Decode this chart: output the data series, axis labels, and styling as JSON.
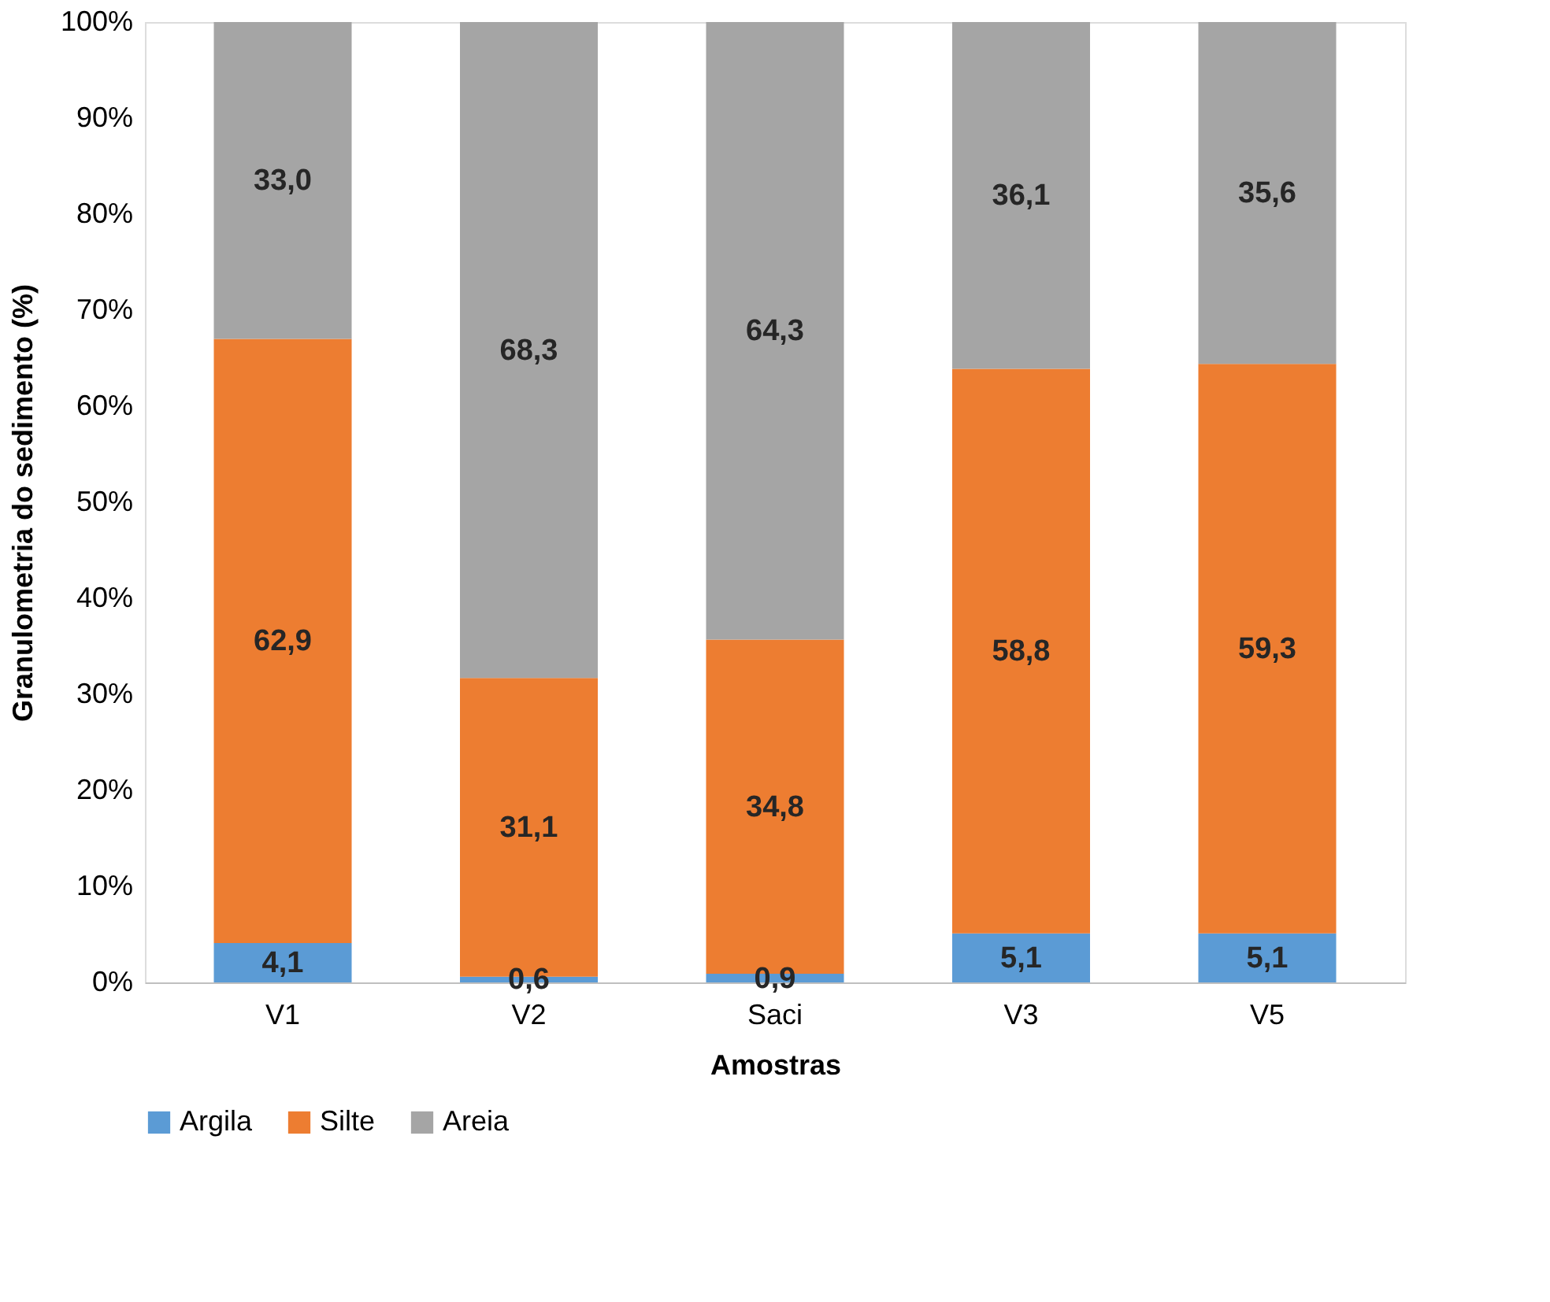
{
  "chart_data": {
    "type": "bar",
    "stacked": true,
    "xlabel": "Amostras",
    "ylabel": "Granulometria do sedimento (%)",
    "categories": [
      "V1",
      "V2",
      "Saci",
      "V3",
      "V5"
    ],
    "series": [
      {
        "name": "Argila",
        "color": "#5b9bd5",
        "values": [
          4.1,
          0.6,
          0.9,
          5.1,
          5.1
        ],
        "value_labels": [
          "4,1",
          "0,6",
          "0,9",
          "5,1",
          "5,1"
        ]
      },
      {
        "name": "Silte",
        "color": "#ed7d31",
        "values": [
          62.9,
          31.1,
          34.8,
          58.8,
          59.3
        ],
        "value_labels": [
          "62,9",
          "31,1",
          "34,8",
          "58,8",
          "59,3"
        ]
      },
      {
        "name": "Areia",
        "color": "#a5a5a5",
        "values": [
          33.0,
          68.3,
          64.3,
          36.1,
          35.6
        ],
        "value_labels": [
          "33,0",
          "68,3",
          "64,3",
          "36,1",
          "35,6"
        ]
      }
    ],
    "ylim": [
      0,
      100
    ],
    "yticks": [
      {
        "value": 0,
        "label": "0%"
      },
      {
        "value": 10,
        "label": "10%"
      },
      {
        "value": 20,
        "label": "20%"
      },
      {
        "value": 30,
        "label": "30%"
      },
      {
        "value": 40,
        "label": "40%"
      },
      {
        "value": 50,
        "label": "50%"
      },
      {
        "value": 60,
        "label": "60%"
      },
      {
        "value": 70,
        "label": "70%"
      },
      {
        "value": 80,
        "label": "80%"
      },
      {
        "value": 90,
        "label": "90%"
      },
      {
        "value": 100,
        "label": "100%"
      }
    ],
    "grid": false,
    "legend": "bottom"
  }
}
